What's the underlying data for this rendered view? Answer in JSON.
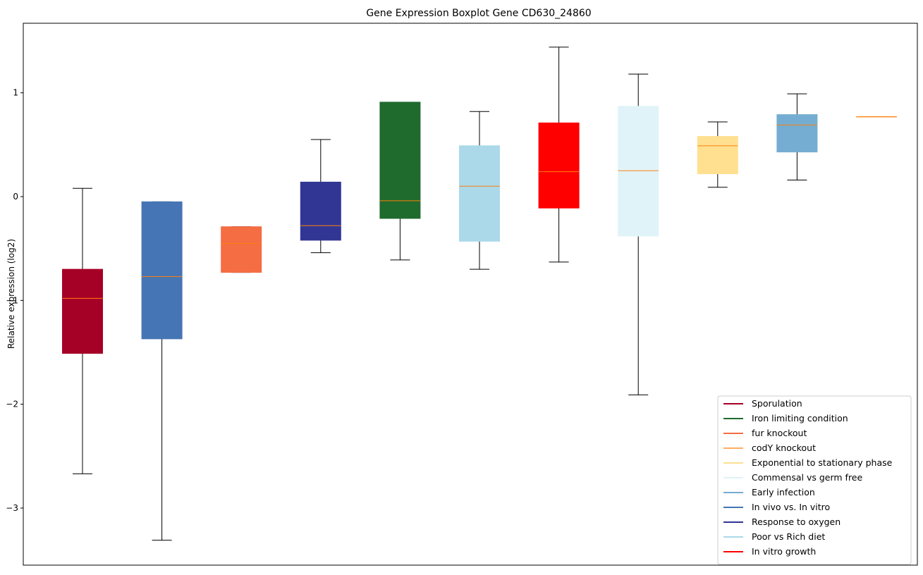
{
  "chart_data": {
    "type": "boxplot",
    "title": "Gene Expression Boxplot Gene CD630_24860",
    "xlabel": "",
    "ylabel": "Relative expression (log2)",
    "ylim": [
      -3.55,
      1.67
    ],
    "yticks": [
      1,
      0,
      -1,
      -2,
      -3
    ],
    "ytick_labels": [
      "1",
      "0",
      "−1",
      "−2",
      "−3"
    ],
    "grid": false,
    "legend_position": "lower-right",
    "boxes": [
      {
        "name": "Sporulation",
        "color": "#a50026",
        "whisker_low": -2.67,
        "q1": -1.51,
        "median": -0.98,
        "q3": -0.7,
        "whisker_high": 0.08
      },
      {
        "name": "In vivo vs. In vitro",
        "color": "#4575b4",
        "whisker_low": -3.31,
        "q1": -1.37,
        "median": -0.77,
        "q3": -0.05,
        "whisker_high": -0.05
      },
      {
        "name": "fur knockout",
        "color": "#f46d43",
        "whisker_low": -0.73,
        "q1": -0.73,
        "median": -0.45,
        "q3": -0.29,
        "whisker_high": -0.29
      },
      {
        "name": "Response to oxygen",
        "color": "#313695",
        "whisker_low": -0.54,
        "q1": -0.42,
        "median": -0.28,
        "q3": 0.14,
        "whisker_high": 0.55
      },
      {
        "name": "Iron limiting condition",
        "color": "#1f6b2e",
        "whisker_low": -0.61,
        "q1": -0.21,
        "median": -0.04,
        "q3": 0.91,
        "whisker_high": 0.91
      },
      {
        "name": "Poor vs Rich diet",
        "color": "#abd9e9",
        "whisker_low": -0.7,
        "q1": -0.43,
        "median": 0.1,
        "q3": 0.49,
        "whisker_high": 0.82
      },
      {
        "name": "In vitro growth",
        "color": "#ff0000",
        "whisker_low": -0.63,
        "q1": -0.11,
        "median": 0.24,
        "q3": 0.71,
        "whisker_high": 1.44
      },
      {
        "name": "Commensal vs germ free",
        "color": "#e0f3f8",
        "whisker_low": -1.91,
        "q1": -0.38,
        "median": 0.25,
        "q3": 0.87,
        "whisker_high": 1.18
      },
      {
        "name": "Exponential to stationary phase",
        "color": "#fee090",
        "whisker_low": 0.09,
        "q1": 0.22,
        "median": 0.49,
        "q3": 0.58,
        "whisker_high": 0.72
      },
      {
        "name": "Early infection",
        "color": "#74add1",
        "whisker_low": 0.16,
        "q1": 0.43,
        "median": 0.69,
        "q3": 0.79,
        "whisker_high": 0.99
      },
      {
        "name": "codY knockout",
        "color": "#fdae61",
        "whisker_low": 0.77,
        "q1": 0.77,
        "median": 0.77,
        "q3": 0.77,
        "whisker_high": 0.77
      }
    ],
    "median_color": "#ff7f0e",
    "legend": [
      {
        "label": "Sporulation",
        "color": "#a50026"
      },
      {
        "label": "Iron limiting condition",
        "color": "#1f6b2e"
      },
      {
        "label": "fur knockout",
        "color": "#f46d43"
      },
      {
        "label": "codY knockout",
        "color": "#fdae61"
      },
      {
        "label": "Exponential to stationary phase",
        "color": "#fee090"
      },
      {
        "label": "Commensal vs germ free",
        "color": "#e0f3f8"
      },
      {
        "label": "Early infection",
        "color": "#74add1"
      },
      {
        "label": "In vivo vs. In vitro",
        "color": "#4575b4"
      },
      {
        "label": "Response to oxygen",
        "color": "#313695"
      },
      {
        "label": "Poor vs Rich diet",
        "color": "#abd9e9"
      },
      {
        "label": "In vitro growth",
        "color": "#ff0000"
      }
    ]
  }
}
